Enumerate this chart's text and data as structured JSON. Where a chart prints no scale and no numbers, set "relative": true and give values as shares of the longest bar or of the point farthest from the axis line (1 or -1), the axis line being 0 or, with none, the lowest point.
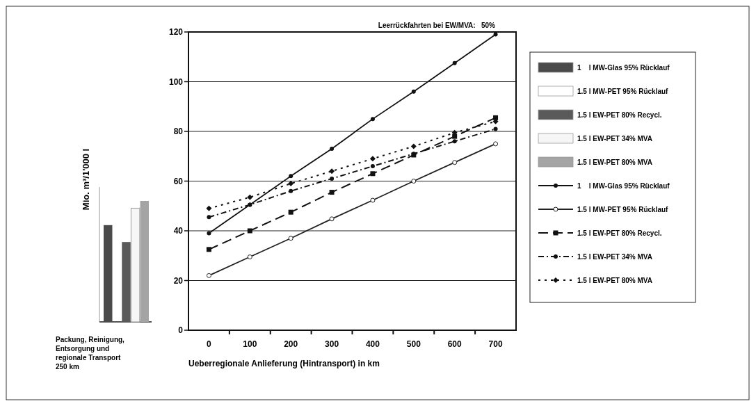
{
  "chart_data": [
    {
      "type": "line",
      "title": "Leerrückfahrten bei EW/MVA:   50%",
      "xlabel": "Ueberregionale Anlieferung (Hintransport) in km",
      "ylabel": "Mio. m³/1'000 l",
      "x": [
        0,
        100,
        200,
        300,
        400,
        500,
        600,
        700
      ],
      "series": [
        {
          "name": "1    l MW-Glas 95% Rücklauf",
          "color": "#111111",
          "marker": "circle",
          "line_style": "solid",
          "values": [
            39,
            50.5,
            62,
            73,
            85,
            96,
            107.5,
            119
          ]
        },
        {
          "name": "1.5 l MW-PET 95% Rücklauf",
          "color": "#222222",
          "marker": "open-circle",
          "line_style": "solid",
          "values": [
            22,
            29.5,
            37,
            44.8,
            52.3,
            60,
            67.5,
            75
          ]
        },
        {
          "name": "1.5 l EW-PET 80% Recycl.",
          "color": "#111111",
          "marker": "square",
          "line_style": "dashed",
          "values": [
            32.5,
            40,
            47.5,
            55.5,
            63,
            70.5,
            78,
            85.5
          ]
        },
        {
          "name": "1.5 l EW-PET 34% MVA",
          "color": "#111111",
          "marker": "circle",
          "line_style": "dashdot",
          "values": [
            45.5,
            50.5,
            56,
            61,
            66,
            71,
            76,
            81
          ]
        },
        {
          "name": "1.5 l EW-PET 80% MVA",
          "color": "#111111",
          "marker": "diamond",
          "line_style": "dotted",
          "values": [
            49,
            53.5,
            59,
            64,
            69,
            74,
            79.5,
            84
          ]
        }
      ],
      "xlim": [
        -50,
        750
      ],
      "xticks": [
        {
          "value": 0,
          "label": "0"
        },
        {
          "value": 50,
          "label": null
        },
        {
          "value": 100,
          "label": "100"
        },
        {
          "value": 150,
          "label": null
        },
        {
          "value": 200,
          "label": "200"
        },
        {
          "value": 250,
          "label": null
        },
        {
          "value": 300,
          "label": "300"
        },
        {
          "value": 350,
          "label": null
        },
        {
          "value": 400,
          "label": "400"
        },
        {
          "value": 450,
          "label": null
        },
        {
          "value": 500,
          "label": "500"
        },
        {
          "value": 550,
          "label": null
        },
        {
          "value": 600,
          "label": "600"
        },
        {
          "value": 650,
          "label": null
        },
        {
          "value": 700,
          "label": "700"
        }
      ],
      "ylim": [
        0,
        120
      ],
      "yticks": [
        0,
        20,
        40,
        60,
        80,
        100,
        120
      ],
      "grid": "y",
      "legend": "right"
    },
    {
      "type": "bar",
      "relative": true,
      "xlabel": "Packung, Reinigung, Entsorgung und regionale Transport 250 km",
      "categories": [
        null
      ],
      "legend": "right",
      "series": [
        {
          "name": "1    l MW-Glas 95% Rücklauf",
          "color": "#4a4a4a",
          "values": [
            0.8
          ]
        },
        {
          "name": "1.5 l MW-PET 95% Rücklauf",
          "color": "#ffffff",
          "values": [
            null
          ]
        },
        {
          "name": "1.5 l EW-PET 80% Recycl.",
          "color": "#5a5a5a",
          "values": [
            0.66
          ]
        },
        {
          "name": "1.5 l EW-PET 34% MVA",
          "color": "#f6f6f6",
          "values": [
            0.94
          ]
        },
        {
          "name": "1.5 l EW-PET 80% MVA",
          "color": "#a4a4a4",
          "values": [
            1
          ]
        }
      ]
    }
  ]
}
